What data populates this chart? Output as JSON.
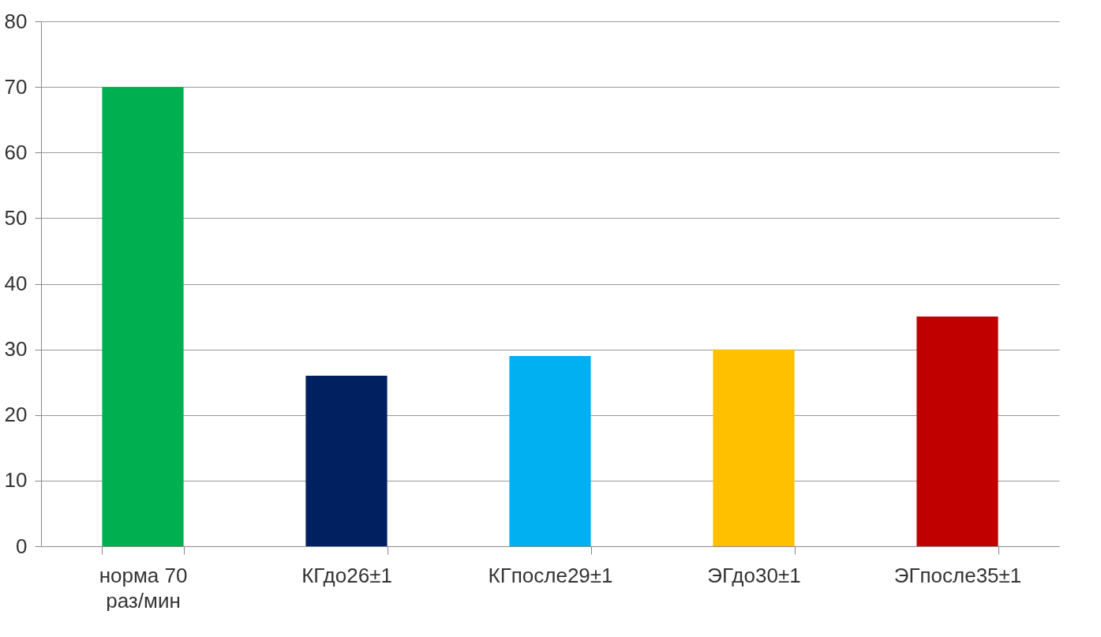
{
  "chart_data": {
    "type": "bar",
    "categories": [
      "норма 70 раз/мин",
      "КГдо26±1",
      "КГпосле29±1",
      "ЭГдо30±1",
      "ЭГпосле35±1"
    ],
    "values": [
      70,
      26,
      29,
      30,
      35
    ],
    "colors": [
      "#00b050",
      "#002060",
      "#00b0f0",
      "#ffc000",
      "#c00000"
    ],
    "ylim": [
      0,
      80
    ],
    "yticks": [
      0,
      10,
      20,
      30,
      40,
      50,
      60,
      70,
      80
    ],
    "grid": "y",
    "legend": false
  }
}
